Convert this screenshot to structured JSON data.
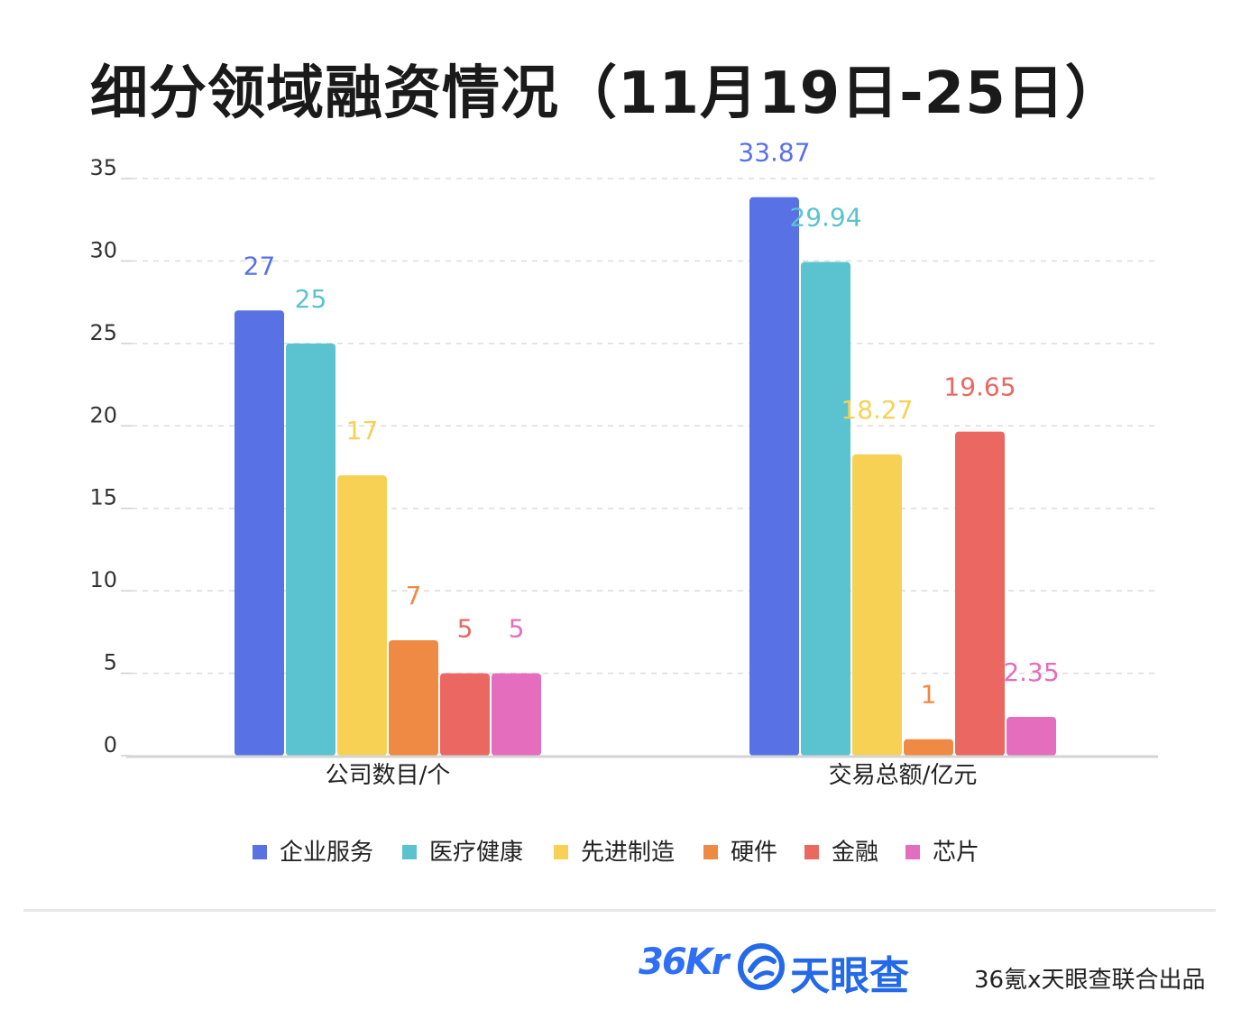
{
  "title": "细分领域融资情况（11月19日-25日）",
  "chart_data": {
    "type": "bar",
    "categories": [
      "公司数目/个",
      "交易总额/亿元"
    ],
    "series": [
      {
        "name": "企业服务",
        "color": "#5872e6",
        "values": [
          27,
          33.87
        ],
        "labels": [
          "27",
          "33.87"
        ]
      },
      {
        "name": "医疗健康",
        "color": "#5bc3cf",
        "values": [
          25,
          29.94
        ],
        "labels": [
          "25",
          "29.94"
        ]
      },
      {
        "name": "先进制造",
        "color": "#f6d154",
        "values": [
          17,
          18.27
        ],
        "labels": [
          "17",
          "18.27"
        ]
      },
      {
        "name": "硬件",
        "color": "#ef8a45",
        "values": [
          7,
          1
        ],
        "labels": [
          "7",
          "1"
        ]
      },
      {
        "name": "金融",
        "color": "#ea6762",
        "values": [
          5,
          19.65
        ],
        "labels": [
          "5",
          "19.65"
        ]
      },
      {
        "name": "芯片",
        "color": "#e56dbd",
        "values": [
          5,
          2.35
        ],
        "labels": [
          "5",
          "2.35"
        ]
      }
    ],
    "yticks": [
      0,
      5,
      10,
      15,
      20,
      25,
      30,
      35
    ],
    "ylim": [
      0,
      35
    ],
    "grid": true,
    "legend": "bottom"
  },
  "footer": {
    "logo_36kr": "36Kr",
    "logo_tianyancha": "天眼查",
    "credit": "36氪x天眼查联合出品"
  },
  "colors": {
    "logo_blue": "#2f6ef6",
    "tianyancha_blue": "#2369e8"
  }
}
